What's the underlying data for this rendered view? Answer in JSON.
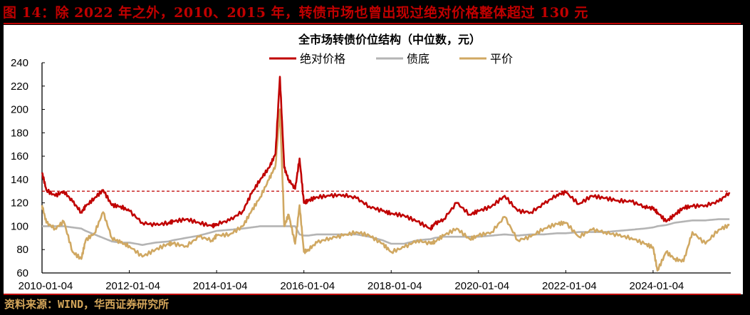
{
  "figure": {
    "caption": "图 14：除 2022 年之外，2010、2015 年，转债市场也曾出现过绝对价格整体超过 130 元",
    "source": "资料来源：WIND，华西证券研究所"
  },
  "colors": {
    "background": "#000000",
    "accent_red": "#c00000",
    "source_gold": "#d4a65a",
    "series_absolute_price": "#c00000",
    "series_bond_floor": "#b4b4b4",
    "series_parity": "#d0a862"
  },
  "chart_data": {
    "type": "line",
    "title": "全市场转债价位结构（中位数，元）",
    "xlabel": "",
    "ylabel": "",
    "ylim": [
      60,
      240
    ],
    "yticks": [
      60,
      80,
      100,
      120,
      140,
      160,
      180,
      200,
      220,
      240
    ],
    "xtick_labels": [
      "2010-01-04",
      "2012-01-04",
      "2014-01-04",
      "2016-01-04",
      "2018-01-04",
      "2020-01-04",
      "2022-01-04",
      "2024-01-04"
    ],
    "x_range": [
      "2010-01-04",
      "2025-10"
    ],
    "legend_position": "top-center",
    "grid": false,
    "reference_line": {
      "y": 130,
      "style": "dashed",
      "color": "#c00000"
    },
    "x": [
      2010.0,
      2010.1,
      2010.3,
      2010.5,
      2010.7,
      2010.9,
      2011.0,
      2011.2,
      2011.4,
      2011.6,
      2011.8,
      2012.0,
      2012.3,
      2012.6,
      2012.9,
      2013.0,
      2013.3,
      2013.6,
      2013.9,
      2014.0,
      2014.3,
      2014.6,
      2014.8,
      2015.0,
      2015.2,
      2015.35,
      2015.45,
      2015.55,
      2015.65,
      2015.8,
      2015.9,
      2016.0,
      2016.1,
      2016.3,
      2016.6,
      2016.9,
      2017.2,
      2017.5,
      2017.8,
      2018.0,
      2018.3,
      2018.6,
      2018.9,
      2019.0,
      2019.2,
      2019.5,
      2019.8,
      2020.0,
      2020.3,
      2020.6,
      2020.9,
      2021.2,
      2021.5,
      2021.8,
      2022.0,
      2022.3,
      2022.6,
      2022.9,
      2023.2,
      2023.5,
      2023.8,
      2024.0,
      2024.1,
      2024.3,
      2024.5,
      2024.7,
      2024.9,
      2025.2,
      2025.5,
      2025.75
    ],
    "series": [
      {
        "name": "绝对价格",
        "color": "#c00000",
        "values": [
          146,
          131,
          126,
          130,
          121,
          112,
          117,
          124,
          131,
          118,
          117,
          113,
          103,
          101,
          103,
          104,
          106,
          103,
          100,
          102,
          105,
          113,
          128,
          140,
          150,
          162,
          228,
          150,
          140,
          132,
          158,
          120,
          122,
          125,
          126,
          127,
          124,
          117,
          113,
          111,
          109,
          104,
          98,
          102,
          106,
          120,
          110,
          113,
          117,
          126,
          113,
          112,
          119,
          127,
          129,
          119,
          126,
          124,
          122,
          121,
          117,
          115,
          112,
          104,
          110,
          116,
          117,
          118,
          121,
          129
        ]
      },
      {
        "name": "债底",
        "color": "#b4b4b4",
        "values": [
          100,
          100,
          100,
          100,
          99,
          98,
          96,
          93,
          90,
          87,
          86,
          86,
          84,
          86,
          87,
          88,
          90,
          92,
          95,
          96,
          97,
          98,
          99,
          100,
          100,
          100,
          100,
          100,
          100,
          100,
          93,
          92,
          92,
          93,
          93,
          93,
          93,
          91,
          88,
          85,
          85,
          88,
          89,
          90,
          91,
          91,
          91,
          91,
          92,
          93,
          92,
          93,
          93,
          94,
          94,
          95,
          95,
          95,
          96,
          97,
          98,
          99,
          100,
          101,
          103,
          104,
          105,
          105,
          106,
          106
        ]
      },
      {
        "name": "平价",
        "color": "#d0a862",
        "values": [
          118,
          103,
          98,
          104,
          78,
          72,
          88,
          94,
          112,
          90,
          86,
          83,
          74,
          80,
          85,
          85,
          83,
          91,
          88,
          92,
          93,
          100,
          113,
          125,
          140,
          152,
          200,
          100,
          110,
          85,
          118,
          78,
          80,
          86,
          90,
          92,
          95,
          92,
          85,
          78,
          82,
          88,
          85,
          87,
          92,
          98,
          89,
          92,
          95,
          108,
          88,
          91,
          98,
          102,
          103,
          91,
          97,
          95,
          92,
          90,
          85,
          82,
          62,
          78,
          72,
          70,
          95,
          85,
          97,
          101
        ]
      }
    ]
  },
  "legend": [
    {
      "label": "绝对价格",
      "color": "#c00000"
    },
    {
      "label": "债底",
      "color": "#b4b4b4"
    },
    {
      "label": "平价",
      "color": "#d0a862"
    }
  ]
}
